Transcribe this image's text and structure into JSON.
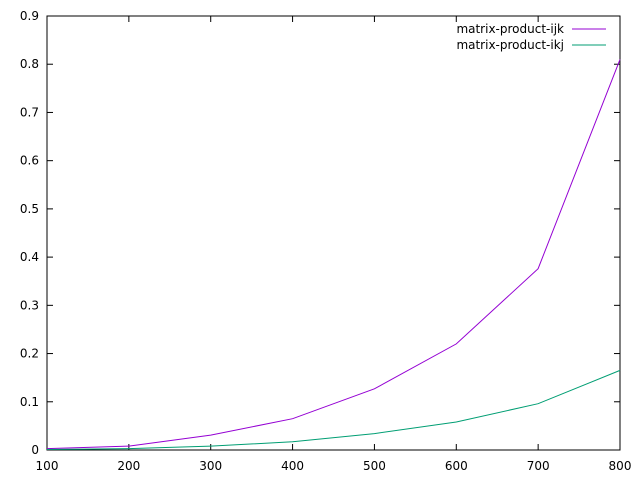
{
  "chart_data": {
    "type": "line",
    "title": "",
    "xlabel": "",
    "ylabel": "",
    "x": [
      100,
      200,
      300,
      400,
      500,
      600,
      700,
      800
    ],
    "xlim": [
      100,
      800
    ],
    "ylim": [
      0,
      0.9
    ],
    "xticks": [
      "100",
      "200",
      "300",
      "400",
      "500",
      "600",
      "700",
      "800"
    ],
    "yticks": [
      "0",
      "0.1",
      "0.2",
      "0.3",
      "0.4",
      "0.5",
      "0.6",
      "0.7",
      "0.8",
      "0.9"
    ],
    "grid": false,
    "legend_position": "top-right",
    "series": [
      {
        "name": "matrix-product-ijk",
        "color": "#9400d3",
        "values": [
          0.003,
          0.008,
          0.031,
          0.065,
          0.127,
          0.22,
          0.376,
          0.81
        ]
      },
      {
        "name": "matrix-product-ikj",
        "color": "#009e73",
        "values": [
          0.001,
          0.003,
          0.008,
          0.017,
          0.034,
          0.058,
          0.096,
          0.165
        ]
      }
    ]
  }
}
